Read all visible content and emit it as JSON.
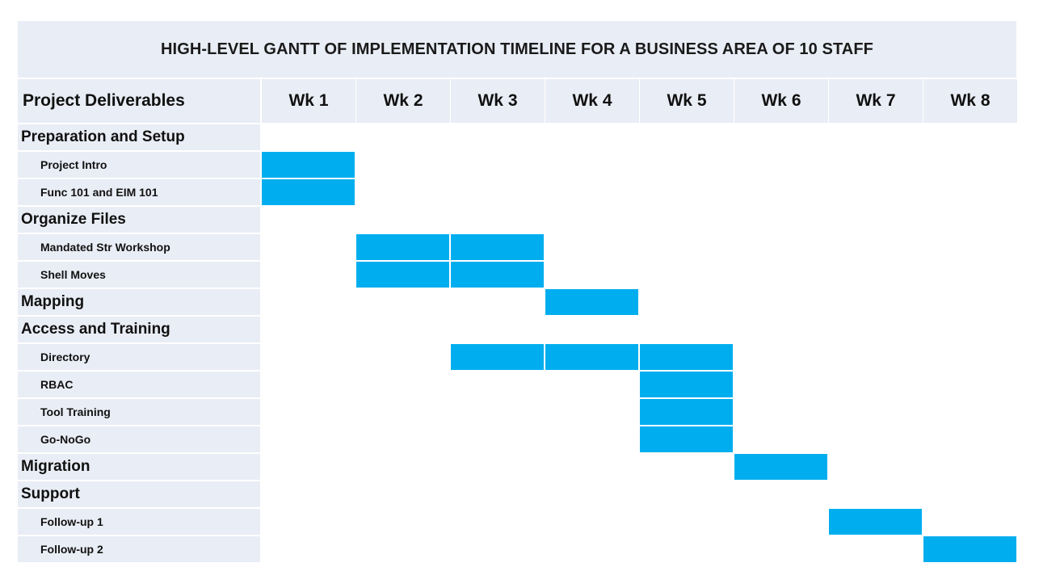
{
  "title": "HIGH-LEVEL GANTT OF IMPLEMENTATION TIMELINE FOR A BUSINESS AREA OF 10 STAFF",
  "header": {
    "first_column": "Project Deliverables",
    "weeks": [
      "Wk 1",
      "Wk 2",
      "Wk 3",
      "Wk 4",
      "Wk 5",
      "Wk 6",
      "Wk 7",
      "Wk 8"
    ]
  },
  "colors": {
    "bar": "#00aeef",
    "label_bg": "#e9edf5"
  },
  "chart_data": {
    "type": "gantt",
    "title": "HIGH-LEVEL GANTT OF IMPLEMENTATION TIMELINE FOR A BUSINESS AREA OF 10 STAFF",
    "categories": [
      "Wk 1",
      "Wk 2",
      "Wk 3",
      "Wk 4",
      "Wk 5",
      "Wk 6",
      "Wk 7",
      "Wk 8"
    ],
    "rows": [
      {
        "label": "Preparation and Setup",
        "kind": "section",
        "weeks": []
      },
      {
        "label": "Project Intro",
        "kind": "task",
        "weeks": [
          1
        ]
      },
      {
        "label": "Func 101 and EIM 101",
        "kind": "task",
        "weeks": [
          1
        ]
      },
      {
        "label": "Organize Files",
        "kind": "section",
        "weeks": []
      },
      {
        "label": "Mandated Str Workshop",
        "kind": "task",
        "weeks": [
          2,
          3
        ]
      },
      {
        "label": "Shell Moves",
        "kind": "task",
        "weeks": [
          2,
          3
        ]
      },
      {
        "label": "Mapping",
        "kind": "section",
        "weeks": [
          4
        ]
      },
      {
        "label": "Access and Training",
        "kind": "section",
        "weeks": []
      },
      {
        "label": "Directory",
        "kind": "task",
        "weeks": [
          3,
          4,
          5
        ]
      },
      {
        "label": "RBAC",
        "kind": "task",
        "weeks": [
          5
        ]
      },
      {
        "label": "Tool Training",
        "kind": "task",
        "weeks": [
          5
        ]
      },
      {
        "label": "Go-NoGo",
        "kind": "task",
        "weeks": [
          5
        ]
      },
      {
        "label": "Migration",
        "kind": "section",
        "weeks": [
          6
        ]
      },
      {
        "label": "Support",
        "kind": "section",
        "weeks": []
      },
      {
        "label": "Follow-up 1",
        "kind": "task",
        "weeks": [
          7
        ]
      },
      {
        "label": "Follow-up 2",
        "kind": "task",
        "weeks": [
          8
        ]
      }
    ]
  }
}
